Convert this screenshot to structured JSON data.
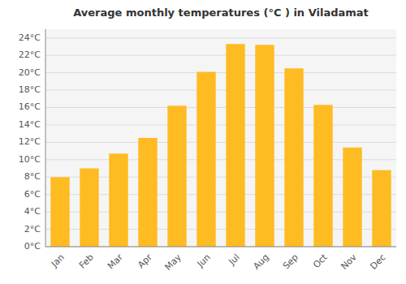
{
  "chart_data": {
    "type": "bar",
    "title": "Average monthly temperatures (°C ) in Viladamat",
    "categories": [
      "Jan",
      "Feb",
      "Mar",
      "Apr",
      "May",
      "Jun",
      "Jul",
      "Aug",
      "Sep",
      "Oct",
      "Nov",
      "Dec"
    ],
    "values": [
      8.0,
      9.0,
      10.7,
      12.5,
      16.2,
      20.1,
      23.3,
      23.2,
      20.5,
      16.3,
      11.4,
      8.8
    ],
    "color": "#FFBB22",
    "ylim": [
      0,
      25
    ],
    "yticks": [
      {
        "value": 0,
        "label": "0°C"
      },
      {
        "value": 2,
        "label": "2°C"
      },
      {
        "value": 4,
        "label": "4°C"
      },
      {
        "value": 6,
        "label": "6°C"
      },
      {
        "value": 8,
        "label": "8°C"
      },
      {
        "value": 10,
        "label": "10°C"
      },
      {
        "value": 12,
        "label": "12°C"
      },
      {
        "value": 14,
        "label": "14°C"
      },
      {
        "value": 16,
        "label": "16°C"
      },
      {
        "value": 18,
        "label": "18°C"
      },
      {
        "value": 20,
        "label": "20°C"
      },
      {
        "value": 22,
        "label": "22°C"
      },
      {
        "value": 24,
        "label": "24°C"
      }
    ],
    "grid": true
  }
}
